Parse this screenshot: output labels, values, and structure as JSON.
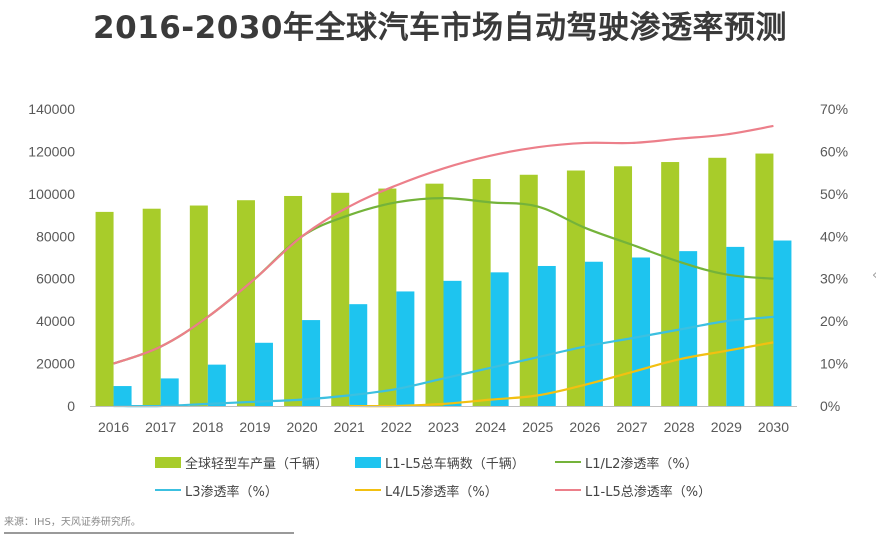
{
  "title": "2016-2030年全球汽车市场自动驾驶渗透率预测",
  "source": "来源：IHS，天风证券研究所。",
  "nav": {
    "prev_icon": "‹",
    "next_icon": "‹"
  },
  "colors": {
    "production": "#a8cc2a",
    "l1l5_vehicles": "#1ec4ef",
    "l1l2": "#74b33a",
    "l3": "#3cc0e0",
    "l4l5": "#f2c011",
    "l1l5_total": "#ec7f8a"
  },
  "chart_data": {
    "type": "bar",
    "title": "2016-2030年全球汽车市场自动驾驶渗透率预测",
    "xlabel": "",
    "ylabel": "",
    "categories": [
      "2016",
      "2017",
      "2018",
      "2019",
      "2020",
      "2021",
      "2022",
      "2023",
      "2024",
      "2025",
      "2026",
      "2027",
      "2028",
      "2029",
      "2030"
    ],
    "y_left": {
      "range": [
        0,
        140000
      ],
      "ticks": [
        "0",
        "20000",
        "40000",
        "60000",
        "80000",
        "100000",
        "120000",
        "140000"
      ]
    },
    "y_right": {
      "range": [
        0,
        70
      ],
      "ticks": [
        "0%",
        "10%",
        "20%",
        "30%",
        "40%",
        "50%",
        "60%",
        "70%"
      ]
    },
    "grid": false,
    "legend_position": "bottom",
    "bar_series": [
      {
        "name": "全球轻型车产量（千辆）",
        "axis": "left",
        "color": "#a8cc2a",
        "values": [
          91500,
          93000,
          94500,
          97000,
          99000,
          100500,
          102500,
          104800,
          107000,
          109000,
          111000,
          113000,
          115000,
          117000,
          119000
        ]
      },
      {
        "name": "L1-L5总车辆数（千辆）",
        "axis": "left",
        "color": "#1ec4ef",
        "values": [
          9400,
          13000,
          19500,
          29800,
          40500,
          48000,
          54000,
          59000,
          63000,
          66000,
          68000,
          70000,
          73000,
          75000,
          78000
        ]
      }
    ],
    "line_series": [
      {
        "name": "L1/L2渗透率（%）",
        "axis": "right",
        "color": "#74b33a",
        "values": [
          10,
          14,
          21,
          30,
          40,
          45,
          48,
          49,
          48,
          47,
          42,
          38,
          34,
          31,
          30
        ]
      },
      {
        "name": "L3渗透率（%）",
        "axis": "right",
        "color": "#3cc0e0",
        "values": [
          0,
          0,
          0.5,
          1,
          1.5,
          2.5,
          4,
          6.5,
          9,
          11.5,
          14,
          16,
          18,
          20,
          21
        ]
      },
      {
        "name": "L4/L5渗透率（%）",
        "axis": "right",
        "color": "#f2c011",
        "values": [
          null,
          null,
          null,
          null,
          null,
          0,
          0,
          0.5,
          1.5,
          2.5,
          5,
          8,
          11,
          13,
          15
        ]
      },
      {
        "name": "L1-L5总渗透率（%）",
        "axis": "right",
        "color": "#ec7f8a",
        "values": [
          10,
          14,
          21,
          30,
          40,
          47,
          52,
          56,
          59,
          61,
          62,
          62,
          63,
          64,
          66
        ]
      }
    ]
  }
}
